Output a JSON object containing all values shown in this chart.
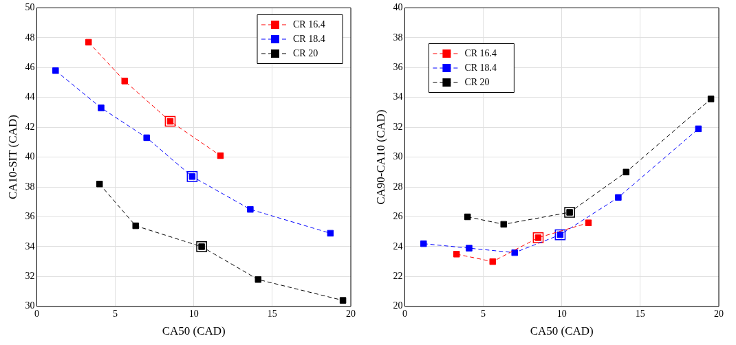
{
  "chart_data": [
    {
      "type": "line",
      "xlabel": "CA50 (CAD)",
      "ylabel": "CA10-SIT (CAD)",
      "xlim": [
        0,
        20
      ],
      "xticks": [
        0,
        5,
        10,
        15,
        20
      ],
      "ylim": [
        30,
        50
      ],
      "yticks": [
        30,
        32,
        34,
        36,
        38,
        40,
        42,
        44,
        46,
        48,
        50
      ],
      "grid": true,
      "legend": "top right",
      "marker": "square",
      "line_style": "dashed",
      "series": [
        {
          "name": "CR 16.4",
          "color": "#ff0000",
          "x": [
            3.3,
            5.6,
            8.5,
            11.7
          ],
          "values": [
            47.7,
            45.1,
            42.4,
            40.1
          ]
        },
        {
          "name": "CR 18.4",
          "color": "#0000ff",
          "x": [
            1.2,
            4.1,
            7.0,
            9.9,
            13.6,
            18.7
          ],
          "values": [
            45.8,
            43.3,
            41.3,
            38.7,
            36.5,
            34.9
          ]
        },
        {
          "name": "CR 20",
          "color": "#000000",
          "x": [
            4.0,
            6.3,
            10.5,
            14.1,
            19.5
          ],
          "values": [
            38.2,
            35.4,
            34.0,
            31.8,
            30.4
          ]
        },
        {
          "type": "scatter",
          "color": "#ff0000",
          "x": [
            8.5
          ],
          "values": [
            42.4
          ]
        },
        {
          "type": "scatter",
          "color": "#0000ff",
          "x": [
            9.9
          ],
          "values": [
            38.7
          ]
        },
        {
          "type": "scatter",
          "color": "#000000",
          "x": [
            10.5
          ],
          "values": [
            34.0
          ]
        }
      ]
    },
    {
      "type": "line",
      "xlabel": "CA50 (CAD)",
      "ylabel": "CA90-CA10 (CAD)",
      "xlim": [
        0,
        20
      ],
      "xticks": [
        0,
        5,
        10,
        15,
        20
      ],
      "ylim": [
        20,
        40
      ],
      "yticks": [
        20,
        22,
        24,
        26,
        28,
        30,
        32,
        34,
        36,
        38,
        40
      ],
      "grid": true,
      "legend": "top left",
      "marker": "square",
      "line_style": "dashed",
      "series": [
        {
          "name": "CR 16.4",
          "color": "#ff0000",
          "x": [
            3.3,
            5.6,
            8.5,
            11.7
          ],
          "values": [
            23.5,
            23.0,
            24.6,
            25.6
          ]
        },
        {
          "name": "CR 18.4",
          "color": "#0000ff",
          "x": [
            1.2,
            4.1,
            7.0,
            9.9,
            13.6,
            18.7
          ],
          "values": [
            24.2,
            23.9,
            23.6,
            24.8,
            27.3,
            31.9
          ]
        },
        {
          "name": "CR 20",
          "color": "#000000",
          "x": [
            4.0,
            6.3,
            10.5,
            14.1,
            19.5
          ],
          "values": [
            26.0,
            25.5,
            26.3,
            29.0,
            33.9
          ]
        },
        {
          "type": "scatter",
          "color": "#ff0000",
          "x": [
            8.5
          ],
          "values": [
            24.6
          ]
        },
        {
          "type": "scatter",
          "color": "#0000ff",
          "x": [
            9.9
          ],
          "values": [
            24.8
          ]
        },
        {
          "type": "scatter",
          "color": "#000000",
          "x": [
            10.5
          ],
          "values": [
            26.3
          ]
        }
      ]
    }
  ]
}
